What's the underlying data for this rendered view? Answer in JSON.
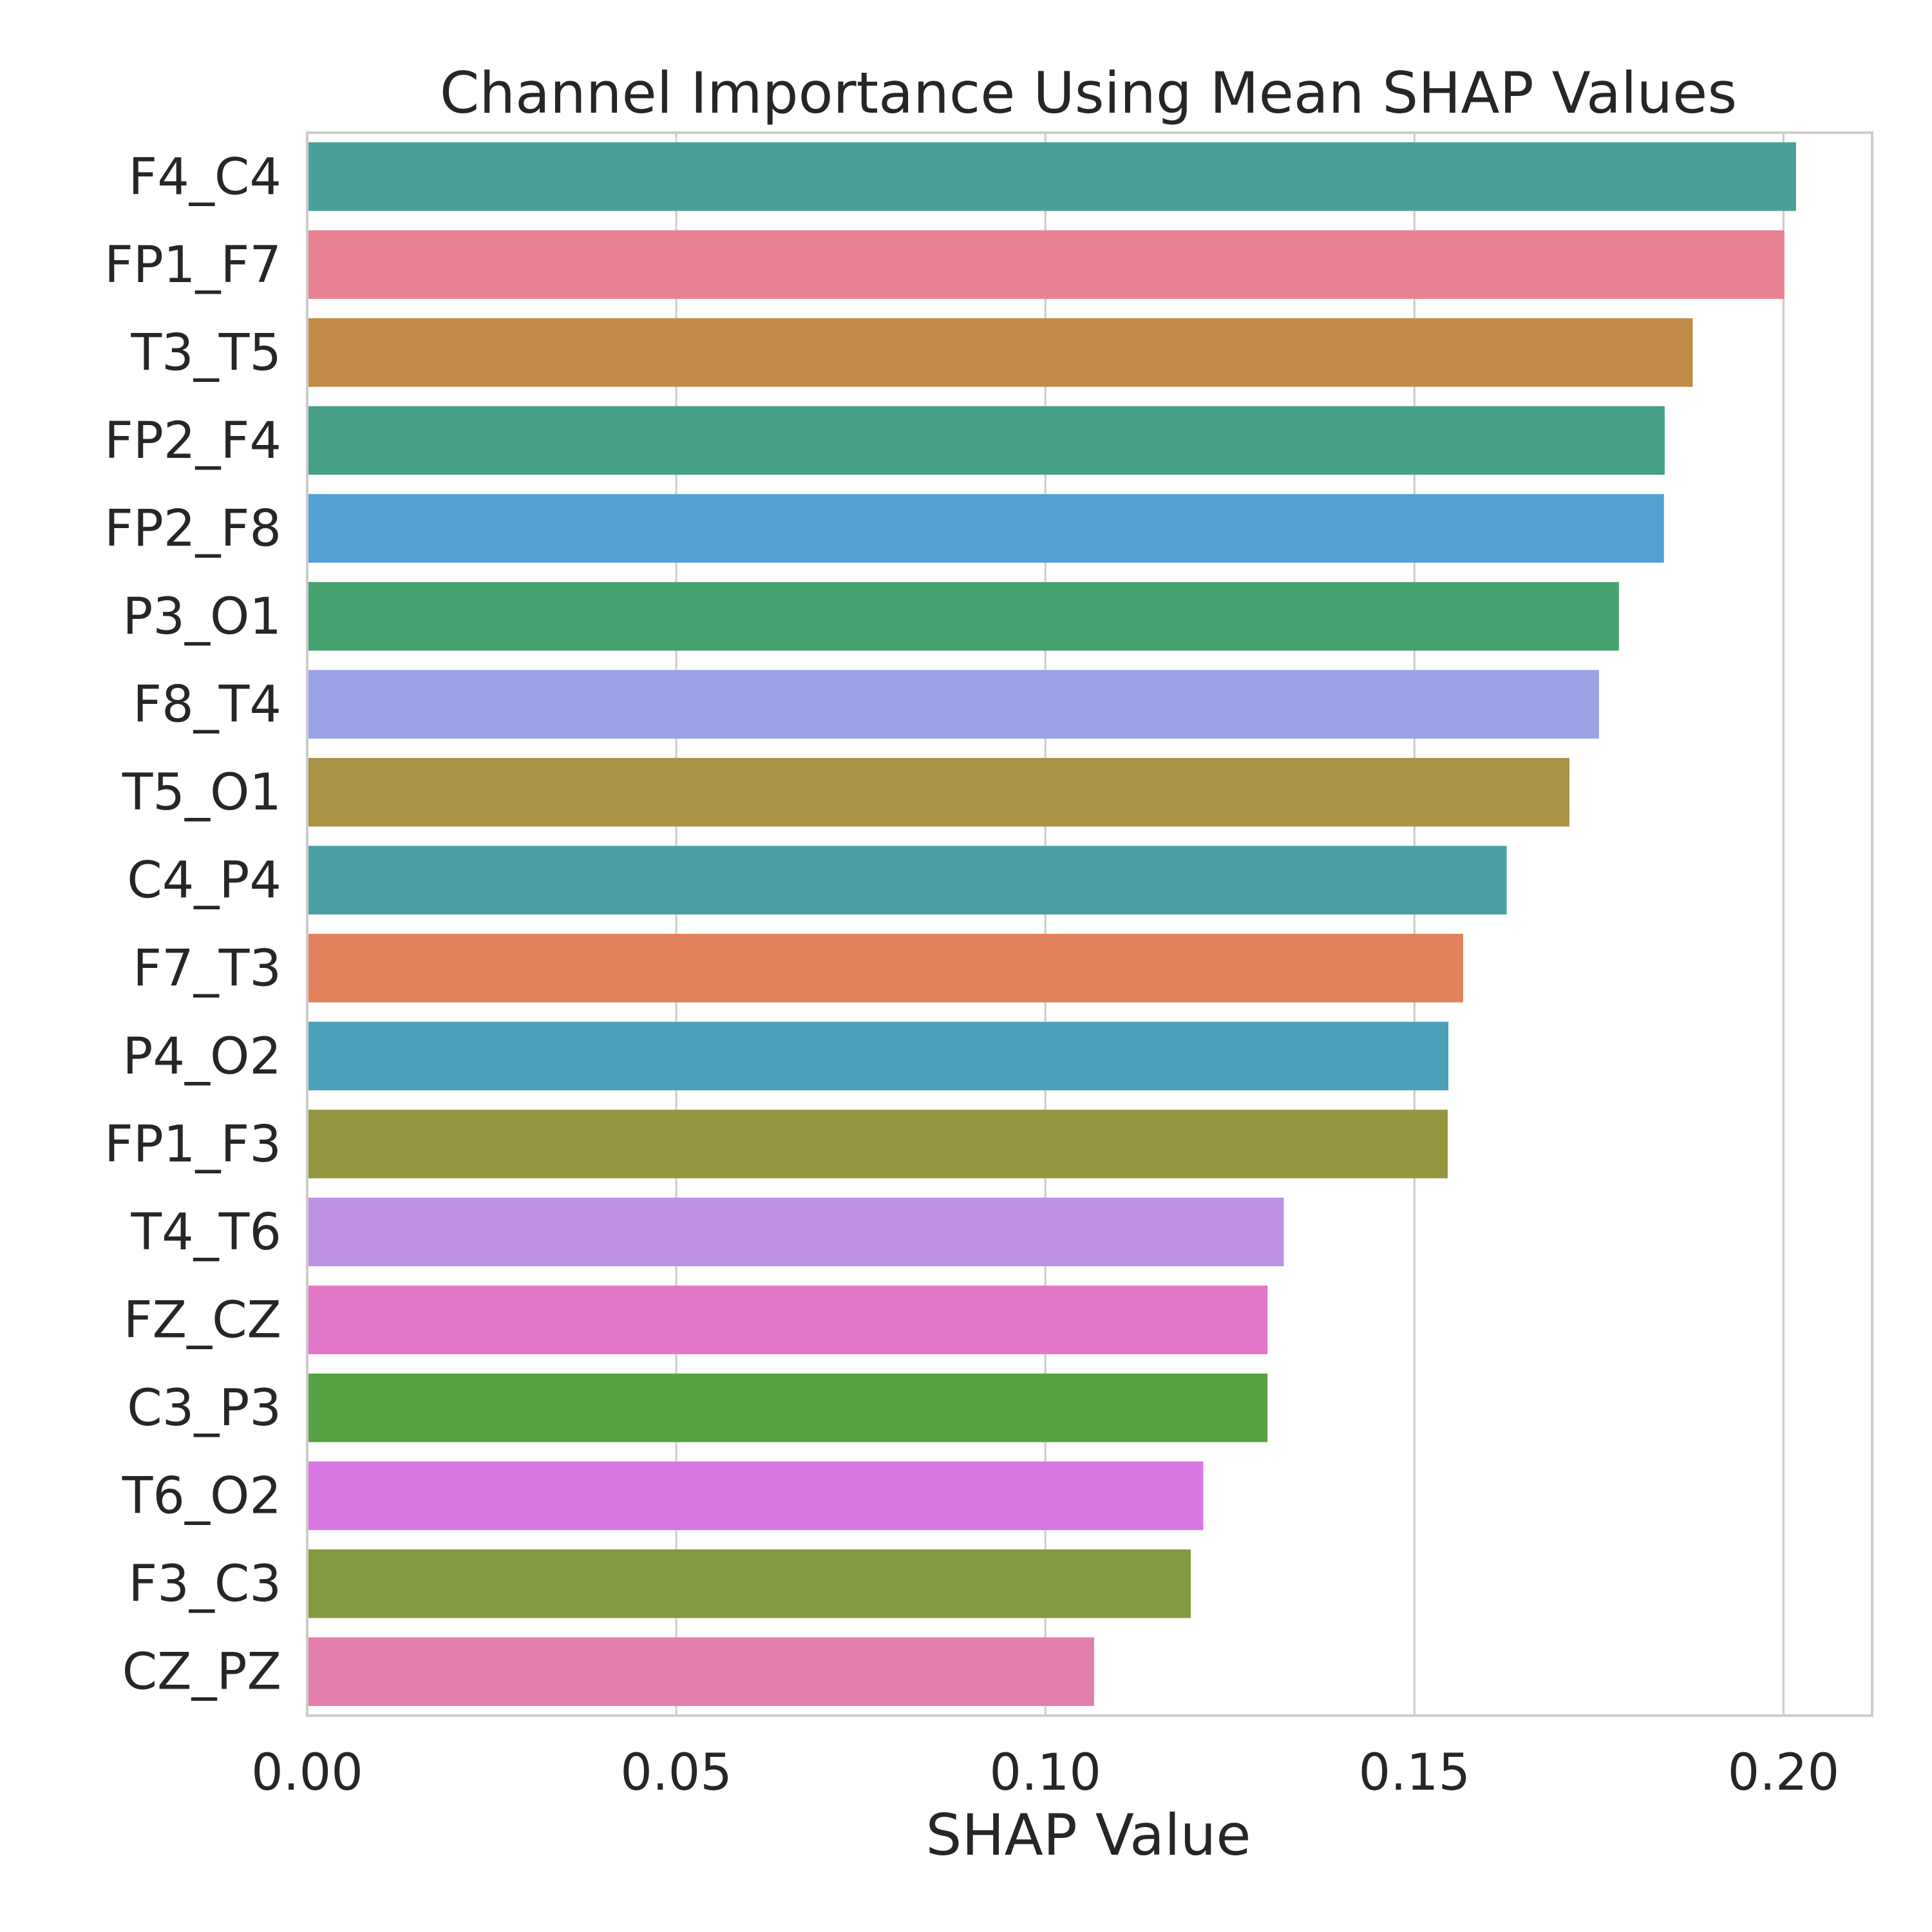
{
  "chart_data": {
    "type": "bar",
    "orientation": "horizontal",
    "title": "Channel Importance Using Mean SHAP Values",
    "xlabel": "SHAP Value",
    "ylabel": "",
    "xlim": [
      0,
      0.212
    ],
    "xticks": [
      0.0,
      0.05,
      0.1,
      0.15,
      0.2
    ],
    "xtick_labels": [
      "0.00",
      "0.05",
      "0.10",
      "0.15",
      "0.20"
    ],
    "grid": "vertical",
    "categories": [
      "F4_C4",
      "FP1_F7",
      "T3_T5",
      "FP2_F4",
      "FP2_F8",
      "P3_O1",
      "F8_T4",
      "T5_O1",
      "C4_P4",
      "F7_T3",
      "P4_O2",
      "FP1_F3",
      "T4_T6",
      "FZ_CZ",
      "C3_P3",
      "T6_O2",
      "F3_C3",
      "CZ_PZ"
    ],
    "values": [
      0.2017,
      0.2001,
      0.1877,
      0.1839,
      0.1838,
      0.1777,
      0.175,
      0.171,
      0.1625,
      0.1566,
      0.1546,
      0.1545,
      0.1323,
      0.1301,
      0.1301,
      0.1214,
      0.1197,
      0.1066
    ],
    "colors": [
      "#49A09A",
      "#E88192",
      "#C28A47",
      "#46A087",
      "#54A0D5",
      "#46A26E",
      "#9AA3E6",
      "#AA9345",
      "#4A9FA5",
      "#E2825C",
      "#4BA0B8",
      "#95953F",
      "#BD92E4",
      "#E276C8",
      "#57A243",
      "#D977E2",
      "#83993F",
      "#E37EAE"
    ]
  }
}
